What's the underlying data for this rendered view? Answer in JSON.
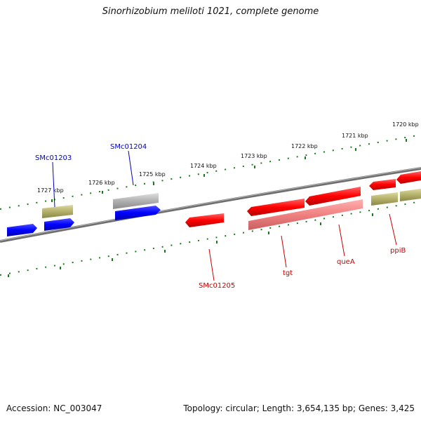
{
  "title": "Sinorhizobium meliloti 1021, complete genome",
  "footer": {
    "accession": "Accession: NC_003047",
    "topology": "Topology: circular; Length: 3,654,135 bp; Genes: 3,425"
  },
  "ruler": {
    "tick_labels": [
      "1720 kbp",
      "1721 kbp",
      "1722 kbp",
      "1723 kbp",
      "1724 kbp",
      "1725 kbp",
      "1726 kbp",
      "1727 kbp"
    ]
  },
  "genes": {
    "labels": [
      {
        "key": "smc01203",
        "text": "SMc01203",
        "color": "#0000cc"
      },
      {
        "key": "smc01204",
        "text": "SMc01204",
        "color": "#0000cc"
      },
      {
        "key": "smc01205",
        "text": "SMc01205",
        "color": "#cc0000"
      },
      {
        "key": "tgt",
        "text": "tgt",
        "color": "#cc0000"
      },
      {
        "key": "quea",
        "text": "queA",
        "color": "#cc0000"
      },
      {
        "key": "ppib",
        "text": "ppiB",
        "color": "#cc0000"
      }
    ]
  },
  "colors": {
    "forward_gene": "#0000ff",
    "reverse_gene": "#ff0000",
    "reverse_cds": "#f08080",
    "cds_olive": "#b3b06a",
    "cds_grey": "#b0b0b0",
    "backbone": "#808080",
    "tick": "#1a7a1a"
  }
}
